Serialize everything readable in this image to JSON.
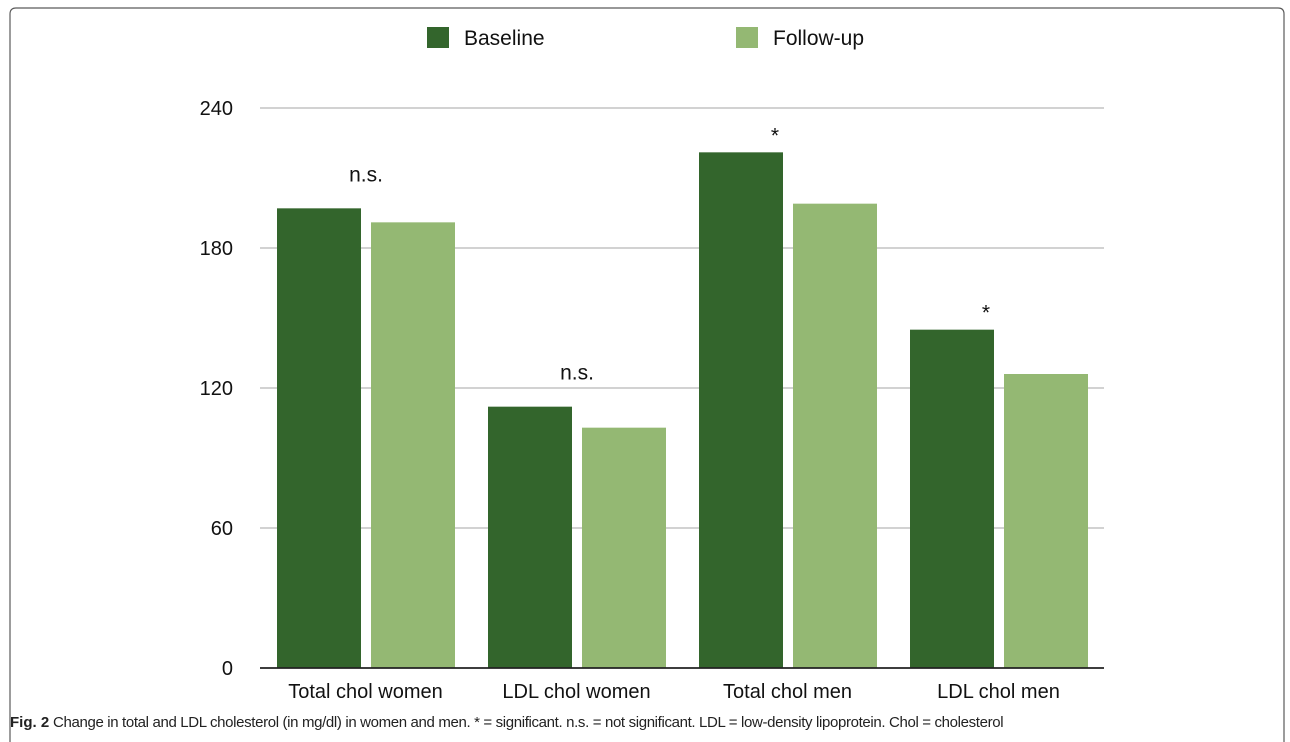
{
  "chart_data": {
    "type": "bar",
    "categories": [
      "Total chol women",
      "LDL chol women",
      "Total chol men",
      "LDL chol men"
    ],
    "series": [
      {
        "name": "Baseline",
        "color": "#33652c",
        "values": [
          197,
          112,
          221,
          145
        ]
      },
      {
        "name": "Follow-up",
        "color": "#94b873",
        "values": [
          191,
          103,
          199,
          126
        ]
      }
    ],
    "yticks": [
      0,
      60,
      120,
      180,
      240
    ],
    "ylim": [
      0,
      240
    ],
    "grid": true,
    "legend_position": "top-center",
    "annotations": [
      "n.s.",
      "n.s.",
      "*",
      "*"
    ]
  },
  "caption": {
    "label": "Fig. 2",
    "text": "Change in total and LDL cholesterol (in mg/dl) in women and men. * = significant. n.s. = not significant. LDL = low-density lipoprotein. Chol = cholesterol"
  }
}
